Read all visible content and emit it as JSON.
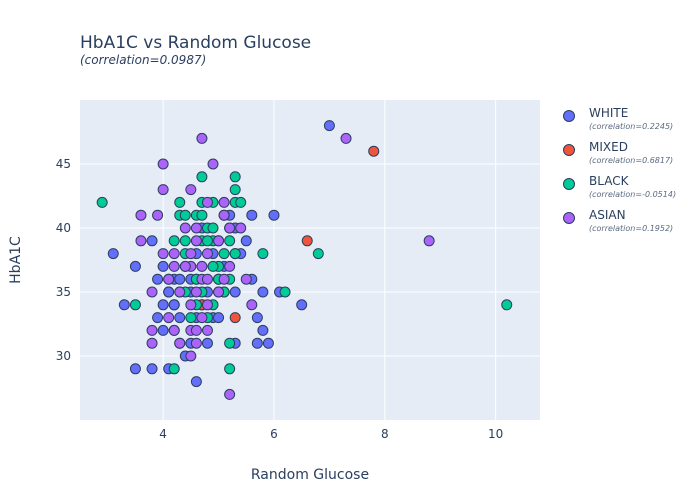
{
  "chart_data": {
    "type": "scatter",
    "title": "HbA1C vs Random Glucose",
    "subtitle": "(correlation=0.0987)",
    "xlabel": "Random Glucose",
    "ylabel": "HbA1C",
    "xlim": [
      2.5,
      10.8
    ],
    "ylim": [
      25,
      50
    ],
    "xticks": [
      4,
      6,
      8,
      10
    ],
    "yticks": [
      30,
      35,
      40,
      45
    ],
    "grid": true,
    "legend_position": "right",
    "series": [
      {
        "name": "WHITE",
        "note": "(correlation=0.2245)",
        "color": "#636efa",
        "points": [
          [
            7.0,
            48
          ],
          [
            6.0,
            41
          ],
          [
            5.6,
            41
          ],
          [
            3.1,
            38
          ],
          [
            3.5,
            37
          ],
          [
            3.3,
            34
          ],
          [
            3.8,
            39
          ],
          [
            3.9,
            36
          ],
          [
            3.9,
            33
          ],
          [
            4.0,
            34
          ],
          [
            4.1,
            35
          ],
          [
            4.2,
            36
          ],
          [
            4.2,
            34
          ],
          [
            4.3,
            33
          ],
          [
            4.0,
            32
          ],
          [
            4.2,
            32
          ],
          [
            4.3,
            31
          ],
          [
            3.5,
            29
          ],
          [
            3.8,
            29
          ],
          [
            4.1,
            29
          ],
          [
            4.4,
            30
          ],
          [
            4.5,
            31
          ],
          [
            4.6,
            28
          ],
          [
            4.6,
            33
          ],
          [
            4.4,
            37
          ],
          [
            4.5,
            36
          ],
          [
            4.5,
            35
          ],
          [
            4.6,
            36
          ],
          [
            4.7,
            34
          ],
          [
            4.8,
            31
          ],
          [
            4.9,
            33
          ],
          [
            5.0,
            36
          ],
          [
            5.1,
            37
          ],
          [
            5.2,
            40
          ],
          [
            5.3,
            40
          ],
          [
            5.4,
            38
          ],
          [
            5.5,
            39
          ],
          [
            5.6,
            36
          ],
          [
            5.7,
            33
          ],
          [
            5.7,
            31
          ],
          [
            5.8,
            35
          ],
          [
            5.8,
            32
          ],
          [
            5.9,
            31
          ],
          [
            6.1,
            35
          ],
          [
            6.5,
            34
          ],
          [
            4.7,
            40
          ],
          [
            5.0,
            39
          ],
          [
            5.3,
            35
          ],
          [
            5.1,
            35
          ],
          [
            4.9,
            38
          ],
          [
            4.1,
            35
          ],
          [
            4.0,
            37
          ],
          [
            5.3,
            38
          ],
          [
            5.2,
            41
          ],
          [
            5.3,
            31
          ],
          [
            5.0,
            33
          ],
          [
            4.8,
            35
          ],
          [
            4.6,
            38
          ],
          [
            4.3,
            36
          ],
          [
            4.2,
            34
          ]
        ]
      },
      {
        "name": "MIXED",
        "note": "(correlation=0.6817)",
        "color": "#ef553b",
        "points": [
          [
            7.8,
            46
          ],
          [
            6.6,
            39
          ],
          [
            5.3,
            33
          ],
          [
            4.7,
            34
          ],
          [
            5.1,
            41
          ]
        ]
      },
      {
        "name": "BLACK",
        "note": "(correlation=-0.0514)",
        "color": "#00cc96",
        "points": [
          [
            2.9,
            42
          ],
          [
            10.2,
            34
          ],
          [
            6.8,
            38
          ],
          [
            6.2,
            35
          ],
          [
            4.2,
            29
          ],
          [
            3.5,
            34
          ],
          [
            4.3,
            42
          ],
          [
            4.3,
            41
          ],
          [
            4.4,
            41
          ],
          [
            4.2,
            39
          ],
          [
            4.1,
            36
          ],
          [
            4.3,
            35
          ],
          [
            4.4,
            38
          ],
          [
            4.6,
            41
          ],
          [
            4.7,
            44
          ],
          [
            4.7,
            42
          ],
          [
            4.7,
            41
          ],
          [
            4.7,
            39
          ],
          [
            4.8,
            40
          ],
          [
            4.9,
            42
          ],
          [
            4.9,
            39
          ],
          [
            5.0,
            37
          ],
          [
            5.0,
            36
          ],
          [
            5.1,
            38
          ],
          [
            5.2,
            39
          ],
          [
            5.3,
            44
          ],
          [
            5.3,
            43
          ],
          [
            5.3,
            42
          ],
          [
            5.4,
            42
          ],
          [
            5.3,
            38
          ],
          [
            5.2,
            36
          ],
          [
            5.1,
            35
          ],
          [
            5.0,
            35
          ],
          [
            4.9,
            34
          ],
          [
            4.8,
            33
          ],
          [
            4.7,
            35
          ],
          [
            4.6,
            34
          ],
          [
            4.5,
            33
          ],
          [
            4.4,
            35
          ],
          [
            5.2,
            31
          ],
          [
            5.2,
            29
          ],
          [
            5.8,
            38
          ],
          [
            4.6,
            36
          ],
          [
            4.9,
            37
          ],
          [
            4.4,
            39
          ],
          [
            4.9,
            40
          ],
          [
            4.8,
            39
          ]
        ]
      },
      {
        "name": "ASIAN",
        "note": "(correlation=0.1952)",
        "color": "#ab63fa",
        "points": [
          [
            4.7,
            47
          ],
          [
            7.3,
            47
          ],
          [
            8.8,
            39
          ],
          [
            4.0,
            45
          ],
          [
            4.9,
            45
          ],
          [
            4.0,
            43
          ],
          [
            4.5,
            43
          ],
          [
            3.6,
            41
          ],
          [
            3.9,
            41
          ],
          [
            4.4,
            40
          ],
          [
            4.6,
            40
          ],
          [
            4.8,
            42
          ],
          [
            5.1,
            42
          ],
          [
            5.4,
            40
          ],
          [
            3.6,
            39
          ],
          [
            4.0,
            38
          ],
          [
            4.2,
            38
          ],
          [
            4.5,
            38
          ],
          [
            4.6,
            39
          ],
          [
            4.8,
            38
          ],
          [
            5.0,
            39
          ],
          [
            5.1,
            41
          ],
          [
            5.2,
            40
          ],
          [
            3.8,
            35
          ],
          [
            3.8,
            32
          ],
          [
            3.8,
            31
          ],
          [
            4.1,
            33
          ],
          [
            4.2,
            32
          ],
          [
            4.3,
            31
          ],
          [
            4.5,
            32
          ],
          [
            4.5,
            30
          ],
          [
            4.6,
            31
          ],
          [
            4.6,
            32
          ],
          [
            4.7,
            33
          ],
          [
            4.8,
            32
          ],
          [
            4.8,
            34
          ],
          [
            4.5,
            34
          ],
          [
            4.3,
            35
          ],
          [
            4.6,
            35
          ],
          [
            4.7,
            36
          ],
          [
            4.7,
            37
          ],
          [
            4.8,
            36
          ],
          [
            5.0,
            35
          ],
          [
            5.1,
            36
          ],
          [
            5.2,
            27
          ],
          [
            5.5,
            36
          ],
          [
            5.6,
            34
          ],
          [
            4.5,
            37
          ],
          [
            4.2,
            37
          ],
          [
            4.1,
            36
          ],
          [
            4.4,
            37
          ],
          [
            5.2,
            37
          ]
        ]
      }
    ]
  }
}
